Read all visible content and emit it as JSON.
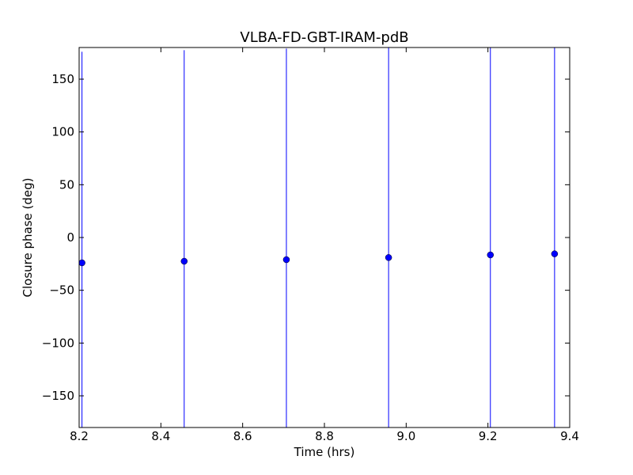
{
  "chart_data": {
    "type": "errorbar",
    "title": "VLBA-FD-GBT-IRAM-pdB",
    "xlabel": "Time (hrs)",
    "ylabel": "Closure phase (deg)",
    "x": [
      8.207,
      8.457,
      8.707,
      8.957,
      9.206,
      9.363
    ],
    "values": [
      -24,
      -22.5,
      -21,
      -19,
      -16.5,
      -15.5
    ],
    "errors": [
      200,
      200,
      200,
      200,
      200,
      200
    ],
    "color": "#0000ff",
    "xlim": [
      8.2,
      9.4
    ],
    "xticks": [
      8.2,
      8.4,
      8.6,
      8.8,
      {
        "value": 9,
        "label": "9.0"
      },
      9.2,
      9.4
    ],
    "ylim": [
      -180,
      180
    ],
    "yticks": [
      {
        "value": -150,
        "label": "−150"
      },
      {
        "value": -100,
        "label": "−100"
      },
      {
        "value": -50,
        "label": "−50"
      },
      0,
      50,
      100,
      150
    ]
  }
}
